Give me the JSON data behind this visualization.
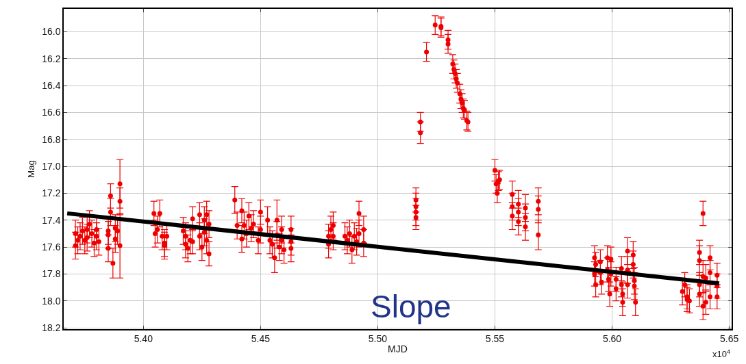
{
  "chart_data": {
    "type": "scatter",
    "xlabel": "MJD",
    "ylabel": "Mag",
    "annotations": [
      "Slope",
      "x10$^{4}$"
    ],
    "xlim": [
      5.366,
      5.651
    ],
    "ylim": [
      18.21,
      15.83
    ],
    "xticks": [
      {
        "value": 5.4,
        "label": "5.40"
      },
      {
        "value": 5.45,
        "label": "5.45"
      },
      {
        "value": 5.5,
        "label": "5.50"
      },
      {
        "value": 5.55,
        "label": "5.55"
      },
      {
        "value": 5.6,
        "label": "5.60"
      },
      {
        "value": 5.65,
        "label": "5.65"
      }
    ],
    "yticks": [
      {
        "value": 16,
        "label": "16.0"
      },
      16.2,
      16.4,
      16.6,
      16.8,
      {
        "value": 17,
        "label": "17.0"
      },
      17.2,
      17.4,
      17.6,
      17.8,
      {
        "value": 18,
        "label": "18.0"
      },
      18.2
    ],
    "grid": true,
    "series": [
      {
        "color": "#ee0000",
        "marker": "circle",
        "x": [
          5.371,
          5.371,
          5.372,
          5.373,
          5.374,
          5.375,
          5.376,
          5.376,
          5.377,
          5.378,
          5.379,
          5.38,
          5.38,
          5.381,
          5.385,
          5.385,
          5.385,
          5.386,
          5.386,
          5.387,
          5.388,
          5.388,
          5.389,
          5.39,
          5.39,
          5.39,
          5.4045,
          5.405,
          5.406,
          5.407,
          5.408,
          5.409,
          5.41,
          5.409,
          5.417,
          5.418,
          5.418,
          5.419,
          5.42,
          5.421,
          5.421,
          5.424,
          5.424,
          5.425,
          5.426,
          5.426,
          5.427,
          5.427,
          5.428,
          5.428,
          5.439,
          5.44,
          5.442,
          5.442,
          5.443,
          5.445,
          5.446,
          5.444,
          5.447,
          5.449,
          5.45,
          5.45,
          5.453,
          5.454,
          5.455,
          5.456,
          5.457,
          5.457,
          5.458,
          5.459,
          5.459,
          5.46,
          5.463,
          5.463,
          5.463,
          5.479,
          5.479,
          5.48,
          5.481,
          5.481,
          5.486,
          5.487,
          5.488,
          5.489,
          5.49,
          5.491,
          5.492,
          5.492,
          5.494,
          5.494,
          5.5163,
          5.5163,
          5.5163,
          5.5163,
          5.5182,
          5.5182,
          5.5208,
          5.5245,
          5.527,
          5.527,
          5.53,
          5.53,
          5.532,
          5.5325,
          5.533,
          5.5335,
          5.534,
          5.535,
          5.5355,
          5.536,
          5.5365,
          5.537,
          5.538,
          5.5385,
          5.55,
          5.5505,
          5.551,
          5.5515,
          5.552,
          5.5574,
          5.5574,
          5.5574,
          5.56,
          5.56,
          5.56,
          5.563,
          5.563,
          5.563,
          5.5685,
          5.5685,
          5.5685,
          5.5925,
          5.5925,
          5.593,
          5.593,
          5.595,
          5.595,
          5.5955,
          5.598,
          5.598,
          5.5985,
          5.599,
          5.5995,
          5.5995,
          5.6017,
          5.6017,
          5.604,
          5.604,
          5.6045,
          5.6045,
          5.6066,
          5.6066,
          5.6066,
          5.609,
          5.609,
          5.6095,
          5.6095,
          5.61,
          5.63,
          5.631,
          5.632,
          5.632,
          5.633,
          5.6373,
          5.6373,
          5.6373,
          5.6373,
          5.6388,
          5.6388,
          5.6388,
          5.64,
          5.64,
          5.6418,
          5.6418,
          5.6418,
          5.6448,
          5.6448,
          5.6448
        ],
        "values": [
          17.5,
          17.59,
          17.55,
          17.52,
          17.48,
          17.55,
          17.47,
          17.53,
          17.43,
          17.5,
          17.57,
          17.47,
          17.52,
          17.56,
          17.48,
          17.51,
          17.61,
          17.22,
          17.34,
          17.72,
          17.46,
          17.54,
          17.48,
          17.13,
          17.26,
          17.59,
          17.35,
          17.5,
          17.47,
          17.35,
          17.52,
          17.57,
          17.52,
          17.59,
          17.48,
          17.52,
          17.58,
          17.61,
          17.55,
          17.39,
          17.56,
          17.36,
          17.52,
          17.6,
          17.4,
          17.49,
          17.36,
          17.55,
          17.43,
          17.65,
          17.25,
          17.44,
          17.33,
          17.54,
          17.44,
          17.37,
          17.46,
          17.5,
          17.43,
          17.55,
          17.34,
          17.47,
          17.4,
          17.55,
          17.58,
          17.68,
          17.4,
          17.51,
          17.6,
          17.47,
          17.55,
          17.62,
          17.47,
          17.56,
          17.61,
          17.52,
          17.58,
          17.47,
          17.44,
          17.52,
          17.52,
          17.55,
          17.5,
          17.62,
          17.52,
          17.56,
          17.35,
          17.5,
          17.47,
          17.57,
          17.25,
          17.3,
          17.34,
          17.38,
          16.67,
          16.75,
          16.15,
          15.95,
          15.96,
          15.97,
          16.06,
          16.09,
          16.24,
          16.28,
          16.31,
          16.35,
          16.38,
          16.46,
          16.5,
          16.53,
          16.57,
          16.58,
          16.66,
          16.67,
          17.03,
          17.13,
          17.2,
          17.11,
          17.1,
          17.21,
          17.3,
          17.37,
          17.28,
          17.34,
          17.41,
          17.31,
          17.38,
          17.45,
          17.26,
          17.32,
          17.51,
          17.68,
          17.8,
          17.73,
          17.88,
          17.71,
          17.79,
          17.86,
          17.68,
          17.77,
          17.84,
          17.95,
          17.69,
          17.8,
          17.84,
          17.91,
          17.76,
          17.88,
          17.95,
          18.01,
          17.63,
          17.77,
          17.88,
          17.66,
          17.73,
          17.85,
          17.89,
          18.01,
          17.93,
          17.88,
          17.97,
          17.99,
          18.0,
          17.64,
          17.7,
          17.88,
          17.95,
          17.35,
          17.82,
          18.04,
          17.83,
          18.01,
          17.68,
          17.79,
          17.97,
          17.81,
          17.89,
          17.97
        ],
        "errors": [
          0.1,
          0.1,
          0.1,
          0.1,
          0.1,
          0.1,
          0.1,
          0.1,
          0.1,
          0.1,
          0.1,
          0.1,
          0.1,
          0.1,
          0.1,
          0.1,
          0.1,
          0.09,
          0.1,
          0.11,
          0.1,
          0.1,
          0.1,
          0.18,
          0.1,
          0.24,
          0.09,
          0.1,
          0.1,
          0.1,
          0.1,
          0.1,
          0.1,
          0.1,
          0.1,
          0.1,
          0.1,
          0.1,
          0.1,
          0.09,
          0.09,
          0.09,
          0.1,
          0.1,
          0.1,
          0.1,
          0.1,
          0.1,
          0.1,
          0.09,
          0.1,
          0.1,
          0.09,
          0.1,
          0.1,
          0.1,
          0.1,
          0.1,
          0.1,
          0.1,
          0.09,
          0.1,
          0.1,
          0.1,
          0.1,
          0.11,
          0.15,
          0.1,
          0.1,
          0.1,
          0.1,
          0.1,
          0.1,
          0.1,
          0.1,
          0.09,
          0.1,
          0.1,
          0.1,
          0.1,
          0.1,
          0.1,
          0.1,
          0.1,
          0.1,
          0.1,
          0.09,
          0.1,
          0.1,
          0.1,
          0.09,
          0.1,
          0.1,
          0.09,
          0.07,
          0.08,
          0.07,
          0.07,
          0.07,
          0.07,
          0.07,
          0.07,
          0.07,
          0.07,
          0.07,
          0.07,
          0.07,
          0.07,
          0.07,
          0.07,
          0.07,
          0.07,
          0.07,
          0.07,
          0.08,
          0.07,
          0.07,
          0.07,
          0.07,
          0.1,
          0.1,
          0.1,
          0.1,
          0.1,
          0.1,
          0.1,
          0.1,
          0.1,
          0.1,
          0.1,
          0.11,
          0.09,
          0.09,
          0.09,
          0.09,
          0.09,
          0.09,
          0.09,
          0.09,
          0.09,
          0.09,
          0.09,
          0.09,
          0.09,
          0.09,
          0.09,
          0.09,
          0.09,
          0.09,
          0.1,
          0.1,
          0.1,
          0.1,
          0.1,
          0.1,
          0.1,
          0.1,
          0.1,
          0.1,
          0.09,
          0.09,
          0.09,
          0.09,
          0.09,
          0.11,
          0.09,
          0.09,
          0.09,
          0.12,
          0.1,
          0.1,
          0.09,
          0.09,
          0.09,
          0.09,
          0.09,
          0.09,
          0.09
        ]
      },
      {
        "type": "line",
        "color": "#000000",
        "x": [
          5.3675,
          5.6457
        ],
        "values": [
          17.35,
          17.87
        ]
      }
    ]
  }
}
